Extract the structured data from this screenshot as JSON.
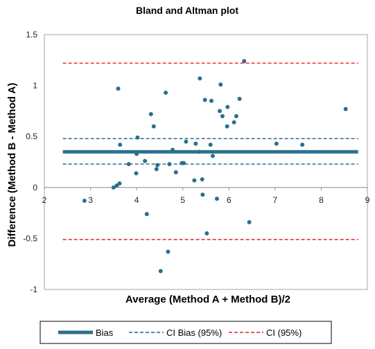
{
  "chart_data": {
    "type": "scatter",
    "title": "Bland and Altman plot",
    "xlabel": "Average (Method A + Method B)/2",
    "ylabel": "Difference (Method B - Method A)",
    "xlim": [
      2,
      9
    ],
    "ylim": [
      -1,
      1.5
    ],
    "x_ticks": [
      2,
      3,
      4,
      5,
      6,
      7,
      8,
      9
    ],
    "y_ticks": [
      -1,
      -0.5,
      0,
      0.5,
      1,
      1.5
    ],
    "x_tick_labels": [
      "2",
      "3",
      "4",
      "5",
      "6",
      "7",
      "8",
      "9"
    ],
    "y_tick_labels": [
      "-1",
      "-0.5",
      "0",
      "0.5",
      "1",
      "1.5"
    ],
    "grid": false,
    "legend_position": "bottom",
    "point_color": "#2a6f8f",
    "points": [
      {
        "x": 2.87,
        "y": -0.13
      },
      {
        "x": 3.5,
        "y": 0.0
      },
      {
        "x": 3.57,
        "y": 0.02
      },
      {
        "x": 3.6,
        "y": 0.97
      },
      {
        "x": 3.63,
        "y": 0.04
      },
      {
        "x": 3.64,
        "y": 0.42
      },
      {
        "x": 3.83,
        "y": 0.23
      },
      {
        "x": 3.99,
        "y": 0.14
      },
      {
        "x": 4.0,
        "y": 0.33
      },
      {
        "x": 4.02,
        "y": 0.49
      },
      {
        "x": 4.18,
        "y": 0.26
      },
      {
        "x": 4.22,
        "y": -0.26
      },
      {
        "x": 4.31,
        "y": 0.72
      },
      {
        "x": 4.37,
        "y": 0.6
      },
      {
        "x": 4.43,
        "y": 0.18
      },
      {
        "x": 4.45,
        "y": 0.22
      },
      {
        "x": 4.52,
        "y": -0.82
      },
      {
        "x": 4.63,
        "y": 0.93
      },
      {
        "x": 4.68,
        "y": -0.63
      },
      {
        "x": 4.71,
        "y": 0.23
      },
      {
        "x": 4.78,
        "y": 0.37
      },
      {
        "x": 4.85,
        "y": 0.15
      },
      {
        "x": 4.98,
        "y": 0.24
      },
      {
        "x": 5.02,
        "y": 0.24
      },
      {
        "x": 5.07,
        "y": 0.45
      },
      {
        "x": 5.25,
        "y": 0.07
      },
      {
        "x": 5.28,
        "y": 0.43
      },
      {
        "x": 5.35,
        "y": 0.35
      },
      {
        "x": 5.37,
        "y": 1.07
      },
      {
        "x": 5.42,
        "y": 0.08
      },
      {
        "x": 5.43,
        "y": -0.07
      },
      {
        "x": 5.48,
        "y": 0.86
      },
      {
        "x": 5.52,
        "y": -0.45
      },
      {
        "x": 5.6,
        "y": 0.42
      },
      {
        "x": 5.62,
        "y": 0.85
      },
      {
        "x": 5.65,
        "y": 0.31
      },
      {
        "x": 5.74,
        "y": -0.11
      },
      {
        "x": 5.8,
        "y": 0.75
      },
      {
        "x": 5.82,
        "y": 1.01
      },
      {
        "x": 5.86,
        "y": 0.7
      },
      {
        "x": 5.96,
        "y": 0.6
      },
      {
        "x": 5.97,
        "y": 0.79
      },
      {
        "x": 6.11,
        "y": 0.64
      },
      {
        "x": 6.16,
        "y": 0.7
      },
      {
        "x": 6.23,
        "y": 0.87
      },
      {
        "x": 6.33,
        "y": 1.24
      },
      {
        "x": 6.44,
        "y": -0.34
      },
      {
        "x": 7.03,
        "y": 0.43
      },
      {
        "x": 7.59,
        "y": 0.42
      },
      {
        "x": 8.53,
        "y": 0.77
      }
    ],
    "lines": [
      {
        "name": "Bias",
        "y": 0.35,
        "x_range": [
          2.4,
          8.8
        ],
        "color": "#2a6f8f",
        "style": "solid",
        "width": "thick"
      },
      {
        "name": "CI Bias (95%)",
        "y": 0.48,
        "x_range": [
          2.4,
          8.8
        ],
        "color": "#1f5f7f",
        "style": "dashed",
        "width": "thin"
      },
      {
        "name": "CI Bias (95%)",
        "y": 0.23,
        "x_range": [
          2.4,
          8.8
        ],
        "color": "#1f5f7f",
        "style": "dashed",
        "width": "thin"
      },
      {
        "name": "CI (95%)",
        "y": 1.22,
        "x_range": [
          2.4,
          8.8
        ],
        "color": "#e8202a",
        "style": "dashed",
        "width": "thin"
      },
      {
        "name": "CI (95%)",
        "y": -0.51,
        "x_range": [
          2.4,
          8.8
        ],
        "color": "#e8202a",
        "style": "dashed",
        "width": "thin"
      }
    ],
    "legend": [
      {
        "label": "Bias",
        "color": "#2a6f8f",
        "style": "solid"
      },
      {
        "label": "CI Bias (95%)",
        "color": "#1f5f7f",
        "style": "dashed"
      },
      {
        "label": "CI (95%)",
        "color": "#e8202a",
        "style": "dashed"
      }
    ]
  }
}
